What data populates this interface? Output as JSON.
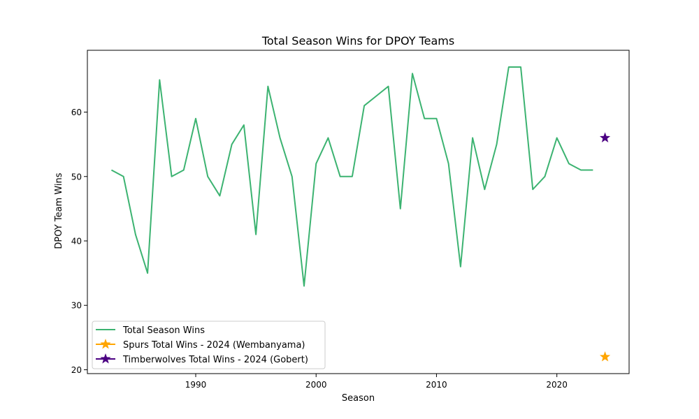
{
  "chart_data": {
    "type": "line",
    "title": "Total Season Wins for DPOY Teams",
    "xlabel": "Season",
    "ylabel": "DPOY Team Wins",
    "xlim": [
      1981,
      2026
    ],
    "ylim": [
      19.4,
      69.6
    ],
    "xticks": [
      1990,
      2000,
      2010,
      2020
    ],
    "yticks": [
      20,
      30,
      40,
      50,
      60
    ],
    "grid": false,
    "legend_position": "lower-left",
    "series": [
      {
        "name": "Total Season Wins",
        "color": "#3cb371",
        "marker": "none",
        "x": [
          1983,
          1984,
          1985,
          1986,
          1987,
          1988,
          1989,
          1990,
          1991,
          1992,
          1993,
          1994,
          1995,
          1996,
          1997,
          1998,
          1999,
          2000,
          2001,
          2002,
          2003,
          2004,
          2005,
          2006,
          2007,
          2008,
          2009,
          2010,
          2011,
          2012,
          2013,
          2014,
          2015,
          2016,
          2017,
          2018,
          2019,
          2020,
          2021,
          2022,
          2023
        ],
        "values": [
          51,
          50,
          41,
          35,
          65,
          50,
          51,
          59,
          50,
          47,
          55,
          58,
          41,
          64,
          56,
          50,
          33,
          52,
          56,
          50,
          50,
          61,
          62.5,
          64,
          45,
          66,
          59,
          59,
          52,
          36,
          56,
          48,
          55,
          67,
          67,
          48,
          50,
          56,
          52,
          51,
          51
        ]
      },
      {
        "name": "Spurs Total Wins - 2024 (Wembanyama)",
        "color": "#ffa500",
        "marker": "star",
        "x": [
          2024
        ],
        "values": [
          22
        ]
      },
      {
        "name": "Timberwolves Total Wins - 2024 (Gobert)",
        "color": "#4b0082",
        "marker": "star",
        "x": [
          2024
        ],
        "values": [
          56
        ]
      }
    ]
  }
}
